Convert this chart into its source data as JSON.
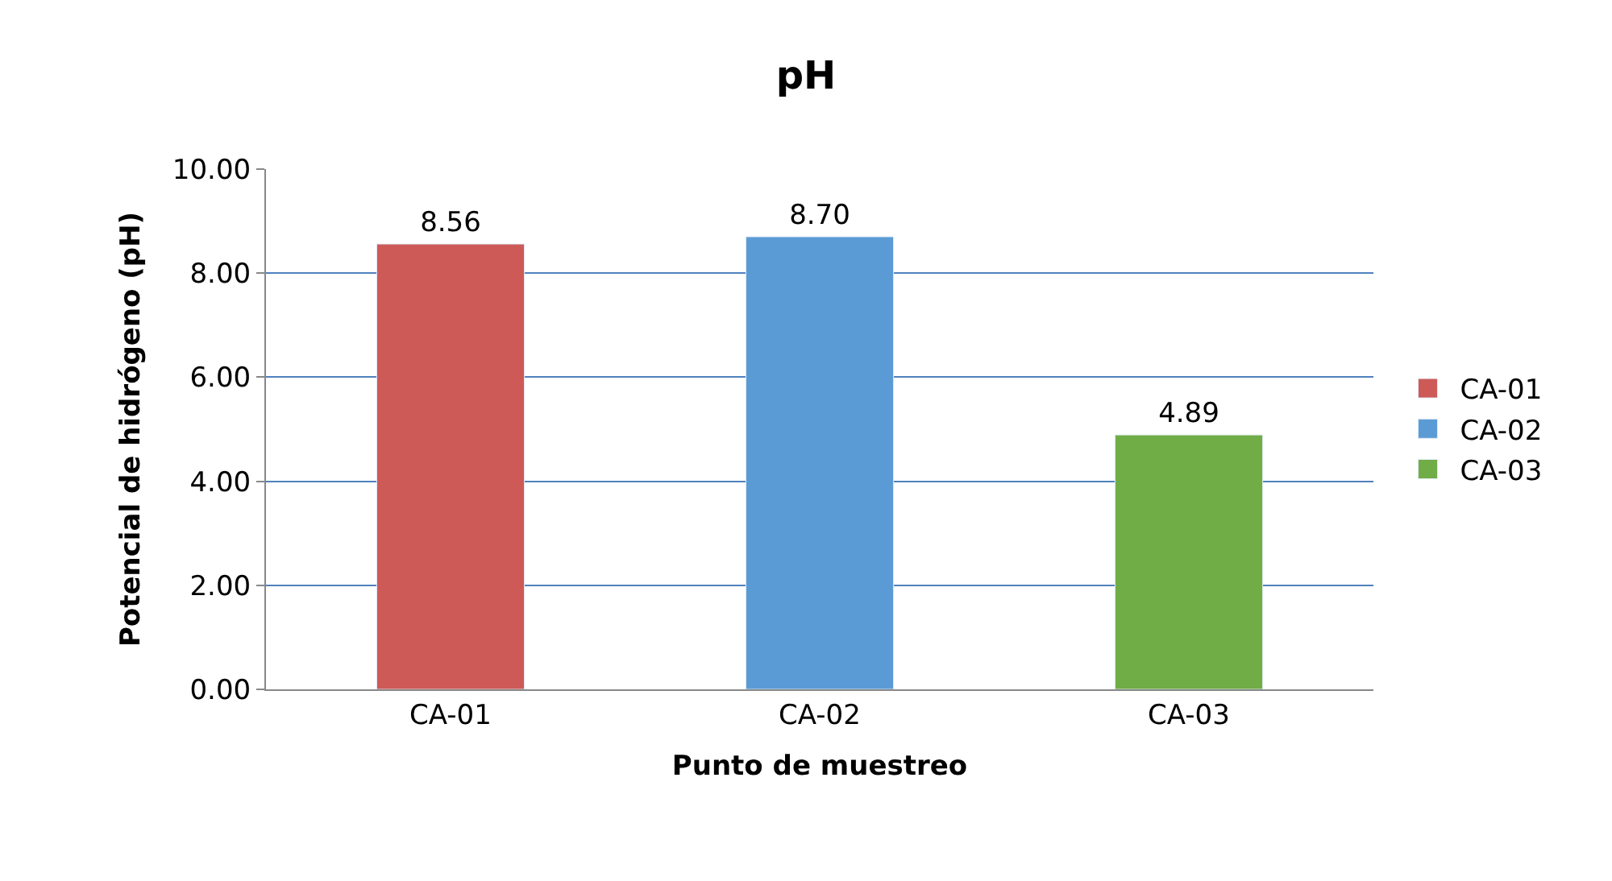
{
  "chart_data": {
    "type": "bar",
    "title": "pH",
    "xlabel": "Punto de muestreo",
    "ylabel": "Potencial de hidrógeno (pH)",
    "categories": [
      "CA-01",
      "CA-02",
      "CA-03"
    ],
    "series": [
      {
        "name": "CA-01",
        "color": "#cd5a57",
        "values": [
          8.56,
          null,
          null
        ],
        "value_labels": [
          "8.56",
          null,
          null
        ]
      },
      {
        "name": "CA-02",
        "color": "#5b9bd5",
        "values": [
          null,
          8.7,
          null
        ],
        "value_labels": [
          null,
          "8.70",
          null
        ]
      },
      {
        "name": "CA-03",
        "color": "#70ad47",
        "values": [
          null,
          null,
          4.89
        ],
        "value_labels": [
          null,
          null,
          "4.89"
        ]
      }
    ],
    "ylim": [
      0,
      10
    ],
    "yticks": [
      {
        "value": 0,
        "label": "0.00"
      },
      {
        "value": 2,
        "label": "2.00"
      },
      {
        "value": 4,
        "label": "4.00"
      },
      {
        "value": 6,
        "label": "6.00"
      },
      {
        "value": 8,
        "label": "8.00"
      },
      {
        "value": 10,
        "label": "10.00"
      }
    ],
    "grid": "y",
    "legend": "right"
  }
}
